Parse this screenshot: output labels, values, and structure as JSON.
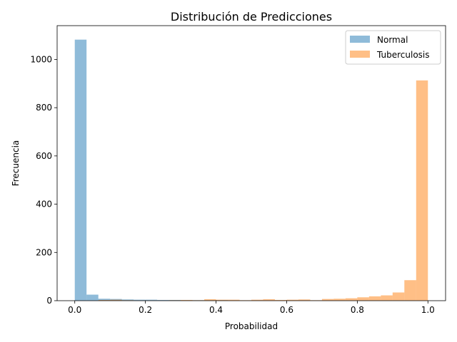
{
  "chart_data": {
    "type": "histogram",
    "title": "Distribución de Predicciones",
    "xlabel": "Probabilidad",
    "ylabel": "Frecuencia",
    "xlim": [
      -0.05,
      1.05
    ],
    "ylim": [
      0,
      1140
    ],
    "xticks": [
      0.0,
      0.2,
      0.4,
      0.6,
      0.8,
      1.0
    ],
    "xtick_labels": [
      "0.0",
      "0.2",
      "0.4",
      "0.6",
      "0.8",
      "1.0"
    ],
    "yticks": [
      0,
      200,
      400,
      600,
      800,
      1000
    ],
    "ytick_labels": [
      "0",
      "200",
      "400",
      "600",
      "800",
      "1000"
    ],
    "grid": false,
    "legend_position": "top-right",
    "series": [
      {
        "name": "Normal",
        "color": "#1f77b4",
        "alpha": 0.5,
        "bin_edges": [
          0.0,
          0.0333,
          0.0667,
          0.1,
          0.1333,
          0.1667,
          0.2,
          0.2333,
          0.2667,
          0.3,
          0.3333,
          0.3667,
          0.4,
          0.4333,
          0.4667,
          0.5,
          0.5333,
          0.5667,
          0.6,
          0.6333,
          0.6667,
          0.7
        ],
        "counts": [
          1082,
          25,
          8,
          7,
          5,
          4,
          4,
          3,
          3,
          2,
          2,
          2,
          2,
          1,
          1,
          1,
          1,
          1,
          1,
          1,
          1
        ]
      },
      {
        "name": "Tuberculosis",
        "color": "#ff7f0e",
        "alpha": 0.5,
        "bin_edges": [
          0.0667,
          0.1,
          0.1333,
          0.1667,
          0.2,
          0.2333,
          0.2667,
          0.3,
          0.3333,
          0.3667,
          0.4,
          0.4333,
          0.4667,
          0.5,
          0.5333,
          0.5667,
          0.6,
          0.6333,
          0.6667,
          0.7,
          0.7333,
          0.7667,
          0.8,
          0.8333,
          0.8667,
          0.9,
          0.9333,
          0.9667,
          1.0
        ],
        "counts": [
          3,
          4,
          2,
          1,
          1,
          1,
          2,
          3,
          2,
          6,
          4,
          4,
          2,
          4,
          6,
          3,
          4,
          5,
          2,
          7,
          8,
          10,
          14,
          18,
          22,
          34,
          85,
          913
        ]
      }
    ]
  }
}
